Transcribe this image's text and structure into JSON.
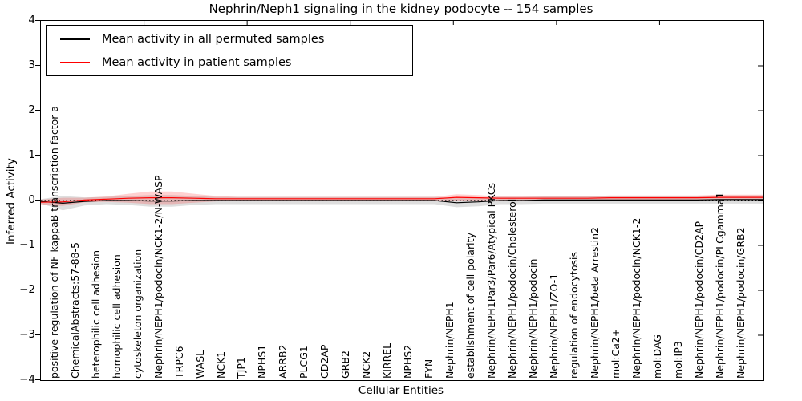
{
  "title": "Nephrin/Neph1 signaling in the kidney podocyte -- 154 samples",
  "axes": {
    "y_label": "Inferred Activity",
    "x_label": "Cellular Entities",
    "y_ticks": [
      {
        "v": 4,
        "t": "4"
      },
      {
        "v": 3,
        "t": "3"
      },
      {
        "v": 2,
        "t": "2"
      },
      {
        "v": 1,
        "t": "1"
      },
      {
        "v": 0,
        "t": "0"
      },
      {
        "v": -1,
        "t": "−1"
      },
      {
        "v": -2,
        "t": "−2"
      },
      {
        "v": -3,
        "t": "−3"
      },
      {
        "v": -4,
        "t": "−4"
      }
    ],
    "ylim": [
      -4,
      4
    ]
  },
  "legend": {
    "entries": [
      {
        "label": "Mean activity in all permuted samples",
        "color": "#000000"
      },
      {
        "label": "Mean activity in patient samples",
        "color": "#ff0000"
      }
    ]
  },
  "chart_data": {
    "type": "line",
    "title": "Nephrin/Neph1 signaling in the kidney podocyte -- 154 samples",
    "xlabel": "Cellular Entities",
    "ylabel": "Inferred Activity",
    "ylim": [
      -4,
      4
    ],
    "grid": false,
    "legend_position": "upper left",
    "zero_line": {
      "y": 0,
      "style": "dotted",
      "color": "#000000"
    },
    "categories": [
      "positive regulation of NF-kappaB transcription factor a",
      "ChemicalAbstracts:57-88-5",
      "heterophilic cell adhesion",
      "homophilic cell adhesion",
      "cytoskeleton organization",
      "Nephrin/NEPH1/podocin/NCK1-2/N-WASP",
      "TRPC6",
      "WASL",
      "NCK1",
      "TJP1",
      "NPHS1",
      "ARRB2",
      "PLCG1",
      "CD2AP",
      "GRB2",
      "NCK2",
      "KIRREL",
      "NPHS2",
      "FYN",
      "Nephrin/NEPH1",
      "establishment of cell polarity",
      "Nephrin/NEPH1Par3/Par6/Atypical PKCs",
      "Nephrin/NEPH1/podocin/Cholesterol",
      "Nephrin/NEPH1/podocin",
      "Nephrin/NEPH1/ZO-1",
      "regulation of endocytosis",
      "Nephrin/NEPH1/beta Arrestin2",
      "mol:Ca2+",
      "Nephrin/NEPH1/podocin/NCK1-2",
      "mol:DAG",
      "mol:IP3",
      "Nephrin/NEPH1/podocin/CD2AP",
      "Nephrin/NEPH1/podocin/PLCgamma1",
      "Nephrin/NEPH1/podocin/GRB2"
    ],
    "series": [
      {
        "name": "Mean activity in all permuted samples",
        "color": "#000000",
        "band_color": "rgba(0,0,0,0.13)",
        "values": [
          -0.02,
          -0.06,
          -0.02,
          0,
          0,
          -0.01,
          -0.01,
          0,
          0,
          0,
          0,
          0,
          0,
          0,
          0,
          0,
          0,
          0,
          0,
          -0.05,
          -0.03,
          0,
          0,
          0.01,
          0.01,
          0.01,
          0.01,
          0.01,
          0.01,
          0.01,
          0.01,
          0.02,
          0.02,
          0.02
        ],
        "band": [
          0.05,
          0.16,
          0.09,
          0.08,
          0.1,
          0.13,
          0.13,
          0.1,
          0.08,
          0.08,
          0.08,
          0.08,
          0.08,
          0.08,
          0.08,
          0.08,
          0.08,
          0.08,
          0.08,
          0.1,
          0.1,
          0.08,
          0.08,
          0.08,
          0.08,
          0.08,
          0.08,
          0.08,
          0.08,
          0.08,
          0.08,
          0.09,
          0.09,
          0.09
        ]
      },
      {
        "name": "Mean activity in patient samples",
        "color": "#ff0000",
        "band_color": "rgba(255,0,0,0.18)",
        "values": [
          -0.04,
          -0.03,
          0.01,
          0.03,
          0.05,
          0.06,
          0.06,
          0.05,
          0.04,
          0.04,
          0.04,
          0.04,
          0.04,
          0.04,
          0.04,
          0.04,
          0.04,
          0.04,
          0.04,
          0.07,
          0.06,
          0.05,
          0.05,
          0.05,
          0.05,
          0.05,
          0.06,
          0.06,
          0.06,
          0.06,
          0.06,
          0.07,
          0.07,
          0.07
        ],
        "band": [
          0.06,
          0.09,
          0.05,
          0.06,
          0.1,
          0.14,
          0.14,
          0.1,
          0.06,
          0.04,
          0.04,
          0.04,
          0.04,
          0.04,
          0.04,
          0.04,
          0.04,
          0.04,
          0.04,
          0.07,
          0.06,
          0.04,
          0.04,
          0.04,
          0.04,
          0.04,
          0.05,
          0.05,
          0.05,
          0.05,
          0.05,
          0.06,
          0.06,
          0.06
        ]
      }
    ]
  }
}
